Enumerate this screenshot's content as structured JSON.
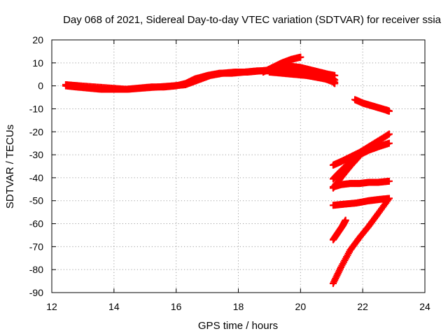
{
  "chart_data": {
    "type": "scatter",
    "title": "Day 068 of 2021, Sidereal Day-to-day VTEC variation (SDTVAR) for receiver ssia",
    "xlabel": "GPS time / hours",
    "ylabel": "SDTVAR / TECUs",
    "xlim": [
      12,
      24
    ],
    "ylim": [
      -90,
      20
    ],
    "xticks": [
      "12",
      "14",
      "16",
      "18",
      "20",
      "22",
      "24"
    ],
    "yticks": [
      "20",
      "10",
      "0",
      "-10",
      "-20",
      "-30",
      "-40",
      "-50",
      "-60",
      "-70",
      "-80",
      "-90"
    ],
    "grid": true,
    "marker": "plus",
    "color": "#ff0000",
    "series": [
      {
        "x": [
          12.45,
          12.8,
          13.2,
          13.6,
          14.0,
          14.4,
          14.8,
          15.2,
          15.6,
          16.0,
          16.3,
          16.6,
          17.0,
          17.4,
          17.8,
          18.2,
          18.6,
          19.0,
          19.4,
          19.8,
          20.2,
          20.6,
          21.0,
          21.1
        ],
        "y": [
          0,
          -0.5,
          -1,
          -1.5,
          -1.5,
          -1.5,
          -1,
          -0.5,
          -0.5,
          0,
          1,
          3,
          4.5,
          5.5,
          5.5,
          6,
          6.5,
          6.5,
          6,
          5.5,
          5,
          4.5,
          3.5,
          2.5
        ]
      },
      {
        "x": [
          12.45,
          12.9,
          13.4,
          13.9,
          14.4,
          14.9,
          15.4,
          15.9,
          16.3,
          16.7,
          17.1,
          17.5,
          17.9,
          18.3,
          18.7,
          19.1,
          19.5,
          19.9
        ],
        "y": [
          0.5,
          0,
          -0.5,
          -1,
          -1.5,
          -1,
          -0.5,
          0,
          0.5,
          2.5,
          4.5,
          5.5,
          6,
          6,
          6.5,
          7,
          7.5,
          7
        ]
      },
      {
        "x": [
          18.8,
          19.1,
          19.4,
          19.7,
          20.0
        ],
        "y": [
          6,
          8,
          10,
          11.5,
          12.5
        ]
      },
      {
        "x": [
          19.4,
          19.7,
          20.0,
          20.3,
          20.6,
          20.9,
          21.1
        ],
        "y": [
          9,
          8.5,
          8,
          7,
          6,
          5,
          4.5
        ]
      },
      {
        "x": [
          19.6,
          19.9,
          20.2,
          20.5,
          20.8,
          21.1
        ],
        "y": [
          7,
          6,
          5,
          4,
          3,
          1.5
        ]
      },
      {
        "x": [
          19.0,
          19.4,
          19.8,
          20.2,
          20.6,
          21.0,
          21.1
        ],
        "y": [
          6,
          5.5,
          5,
          4.5,
          3.5,
          2.5,
          1
        ]
      },
      {
        "x": [
          21.75,
          22.0,
          22.25,
          22.5,
          22.75,
          22.85
        ],
        "y": [
          -6,
          -7.5,
          -8.5,
          -9.5,
          -10.5,
          -11
        ]
      },
      {
        "x": [
          21.05,
          21.3,
          21.6,
          21.9,
          22.2,
          22.5,
          22.85
        ],
        "y": [
          -34.5,
          -33,
          -31,
          -29,
          -26.5,
          -24,
          -21
        ]
      },
      {
        "x": [
          21.05,
          21.3,
          21.6,
          21.9,
          22.2,
          22.5,
          22.85
        ],
        "y": [
          -40.5,
          -37,
          -33,
          -30,
          -28,
          -26.5,
          -25
        ]
      },
      {
        "x": [
          21.05,
          21.3,
          21.6,
          21.9
        ],
        "y": [
          -44.5,
          -40,
          -35,
          -30.5
        ]
      },
      {
        "x": [
          21.05,
          21.3,
          21.6,
          21.9,
          22.2,
          22.5,
          22.85
        ],
        "y": [
          -44,
          -43,
          -42.5,
          -42.5,
          -42,
          -42,
          -41.5
        ]
      },
      {
        "x": [
          21.05,
          21.4,
          21.8,
          22.2,
          22.5,
          22.85
        ],
        "y": [
          -52,
          -51.5,
          -51,
          -50,
          -49.5,
          -49
        ]
      },
      {
        "x": [
          21.05,
          21.2,
          21.35,
          21.45
        ],
        "y": [
          -67,
          -64,
          -61,
          -58.5
        ]
      },
      {
        "x": [
          21.05,
          21.3,
          21.6,
          21.9,
          22.2,
          22.5,
          22.85
        ],
        "y": [
          -86,
          -79,
          -71.5,
          -66,
          -61,
          -55.5,
          -49
        ]
      }
    ]
  }
}
